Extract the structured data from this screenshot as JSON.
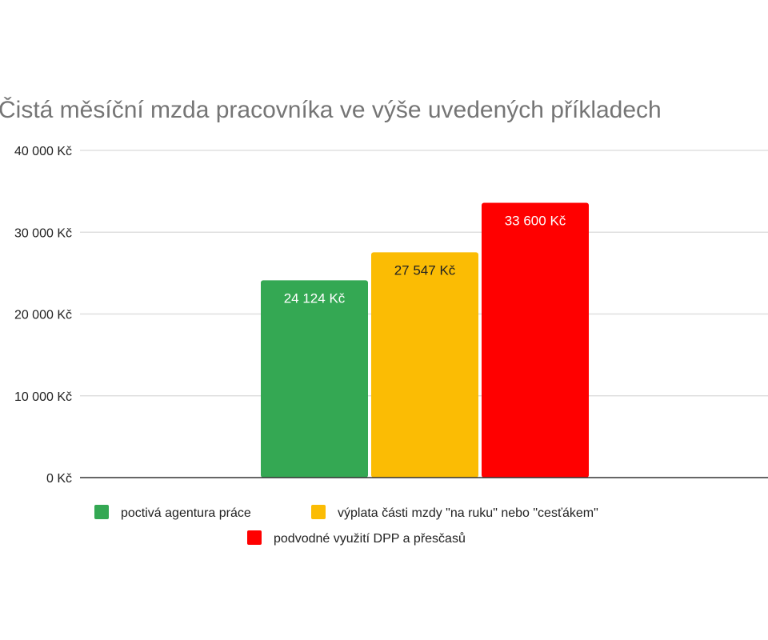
{
  "chart_data": {
    "type": "bar",
    "title": "Čistá měsíční mzda pracovníka ve výše uvedených příkladech",
    "xlabel": "",
    "ylabel": "",
    "ylim": [
      0,
      40000
    ],
    "y_ticks": [
      0,
      10000,
      20000,
      30000,
      40000
    ],
    "y_tick_labels": [
      "0 Kč",
      "10 000 Kč",
      "20 000 Kč",
      "30 000 Kč",
      "40 000 Kč"
    ],
    "grid": true,
    "legend_position": "bottom",
    "series": [
      {
        "name": "poctivá agentura práce",
        "value": 24124,
        "label": "24 124 Kč",
        "color": "#34a853",
        "label_color": "#ffffff"
      },
      {
        "name": "výplata části mzdy \"na ruku\" nebo \"cesťákem\"",
        "value": 27547,
        "label": "27 547 Kč",
        "color": "#fbbc04",
        "label_color": "#222222"
      },
      {
        "name": "podvodné využití DPP a přesčasů",
        "value": 33600,
        "label": "33 600 Kč",
        "color": "#ff0000",
        "label_color": "#ffffff"
      }
    ]
  }
}
